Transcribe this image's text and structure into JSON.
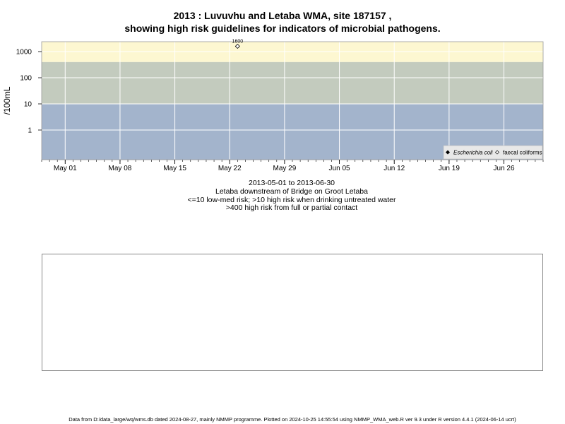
{
  "title_line1": "2013 : Luvuvhu and Letaba WMA, site 187157 ,",
  "title_line2": "showing high risk guidelines for indicators of microbial pathogens.",
  "subtitle_lines": [
    "2013-05-01 to 2013-06-30",
    "Letaba downstream of Bridge on Groot Letaba",
    "<=10 low-med risk; >10 high risk when drinking untreated water",
    ">400 high risk from full or partial contact"
  ],
  "footer": "Data from D:/data_large/wq/wms.db dated 2024-08-27, mainly NMMP programme. Plotted on 2024-10-25 14:55:54 using NMMP_WMA_web.R ver 9.3 under R version 4.4.1 (2024-06-14 ucrt)",
  "colors": {
    "band_low": "#a3b4cc",
    "band_mid": "#c3cbbe",
    "band_high": "#fdf7d1",
    "grid": "#ffffff"
  },
  "chart_data": {
    "type": "scatter",
    "ylabel": "/100mL",
    "y_scale": "log",
    "y_ticks": [
      1,
      10,
      100,
      1000
    ],
    "y_tick_labels": [
      "1",
      "10",
      "100",
      "1000"
    ],
    "xlim": [
      "2013-04-28",
      "2013-07-01"
    ],
    "x_ticks": [
      "2013-05-01",
      "2013-05-08",
      "2013-05-15",
      "2013-05-22",
      "2013-05-29",
      "2013-06-05",
      "2013-06-12",
      "2013-06-19",
      "2013-06-26"
    ],
    "x_tick_labels": [
      "May 01",
      "May 08",
      "May 15",
      "May 22",
      "May 29",
      "Jun 05",
      "Jun 12",
      "Jun 19",
      "Jun 26"
    ],
    "risk_bands": [
      {
        "from": null,
        "to": 10,
        "color_key": "band_low"
      },
      {
        "from": 10,
        "to": 400,
        "color_key": "band_mid"
      },
      {
        "from": 400,
        "to": null,
        "color_key": "band_high"
      }
    ],
    "series": [
      {
        "name": "Escherichia coli",
        "marker": "filled-diamond",
        "points": []
      },
      {
        "name": "faecal coliforms",
        "marker": "open-diamond",
        "points": [
          {
            "x": "2013-05-23",
            "y": 1600,
            "label": "1600"
          }
        ]
      }
    ],
    "legend_position": "bottom-right",
    "grid": true
  }
}
